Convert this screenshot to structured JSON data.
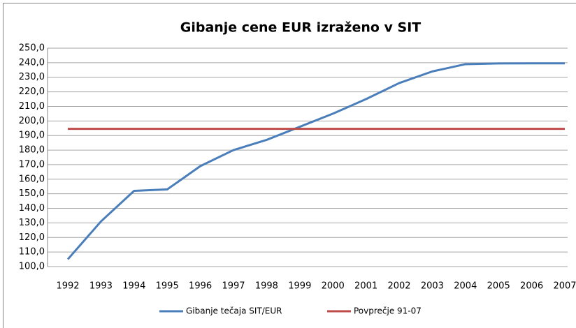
{
  "chart_data": {
    "type": "line",
    "title": "Gibanje cene EUR izraženo  v SIT",
    "categories": [
      "1992",
      "1993",
      "1994",
      "1995",
      "1996",
      "1997",
      "1998",
      "1999",
      "2000",
      "2001",
      "2002",
      "2003",
      "2004",
      "2005",
      "2006",
      "2007"
    ],
    "series": [
      {
        "name": "Gibanje tečaja SIT/EUR",
        "color": "#4a7ebb",
        "values": [
          105,
          131,
          152,
          153,
          169,
          180,
          187,
          196,
          205,
          215,
          226,
          234,
          239,
          239.5,
          239.6,
          239.6
        ]
      },
      {
        "name": "Povprečje 91-07",
        "color": "#be4b48",
        "values": [
          194.6,
          194.6,
          194.6,
          194.6,
          194.6,
          194.6,
          194.6,
          194.6,
          194.6,
          194.6,
          194.6,
          194.6,
          194.6,
          194.6,
          194.6,
          194.6
        ]
      }
    ],
    "ylim": [
      100,
      250
    ],
    "yticks": [
      {
        "value": 100,
        "label": "100,0"
      },
      {
        "value": 110,
        "label": "110,0"
      },
      {
        "value": 120,
        "label": "120,0"
      },
      {
        "value": 130,
        "label": "130,0"
      },
      {
        "value": 140,
        "label": "140,0"
      },
      {
        "value": 150,
        "label": "150,0"
      },
      {
        "value": 160,
        "label": "160,0"
      },
      {
        "value": 170,
        "label": "170,0"
      },
      {
        "value": 180,
        "label": "180,0"
      },
      {
        "value": 190,
        "label": "190,0"
      },
      {
        "value": 200,
        "label": "200,0"
      },
      {
        "value": 210,
        "label": "210,0"
      },
      {
        "value": 220,
        "label": "220,0"
      },
      {
        "value": 230,
        "label": "230,0"
      },
      {
        "value": 240,
        "label": "240,0"
      },
      {
        "value": 250,
        "label": "250,0"
      }
    ],
    "grid": true,
    "legend": "bottom"
  }
}
